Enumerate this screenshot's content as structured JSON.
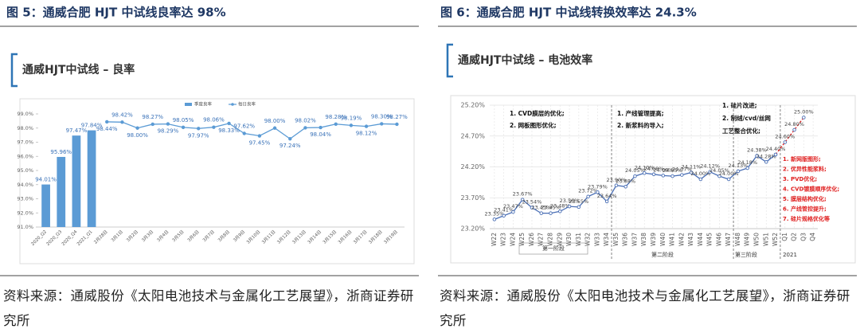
{
  "chart_data": [
    {
      "type": "bar",
      "title": "图 5：通威合肥 HJT 中试线良率达 98%",
      "subtitle": "通威HJT中试线 – 良率",
      "categories": [
        "2020_Q2",
        "2020_Q3",
        "2020_Q4",
        "2021_Q1",
        "2月28日",
        "3月1日",
        "3月2日",
        "3月3日",
        "3月4日",
        "3月5日",
        "3月6日",
        "3月7日",
        "3月8日",
        "3月9日",
        "3月10日",
        "3月11日",
        "3月12日",
        "3月13日",
        "3月14日",
        "3月15日",
        "3月16日",
        "3月17日",
        "3月18日",
        "3月19日"
      ],
      "series": [
        {
          "name": "季度良率",
          "type": "bar",
          "color": "#5b9bd5",
          "values": [
            94.01,
            95.96,
            97.47,
            97.84,
            null,
            null,
            null,
            null,
            null,
            null,
            null,
            null,
            null,
            null,
            null,
            null,
            null,
            null,
            null,
            null,
            null,
            null,
            null,
            null
          ],
          "value_labels": [
            "94.01%",
            "95.96%",
            "97.47%",
            "97.84%",
            null,
            null,
            null,
            null,
            null,
            null,
            null,
            null,
            null,
            null,
            null,
            null,
            null,
            null,
            null,
            null,
            null,
            null,
            null,
            null
          ]
        },
        {
          "name": "每日良率",
          "type": "line",
          "color": "#5b9bd5",
          "values": [
            null,
            null,
            null,
            null,
            98.44,
            98.42,
            98.0,
            98.27,
            98.29,
            98.05,
            97.97,
            98.06,
            98.33,
            97.62,
            97.45,
            98.0,
            97.24,
            98.02,
            98.04,
            98.28,
            98.19,
            98.12,
            98.3,
            98.27
          ],
          "value_labels": [
            null,
            null,
            null,
            null,
            "98.44%",
            "98.42%",
            "98.00%",
            "98.27%",
            "98.29%",
            "98.05%",
            "97.97%",
            "98.06%",
            "98.33%",
            "97.62%",
            "97.45%",
            "98.00%",
            "97.24%",
            "98.02%",
            "98.04%",
            "98.28%",
            "98.19%",
            "98.12%",
            "98.30%",
            "98.27%"
          ]
        }
      ],
      "ylim": [
        91,
        99
      ],
      "yticks": [
        {
          "value": 91,
          "label": "91.0%"
        },
        {
          "value": 92,
          "label": "92.0%"
        },
        {
          "value": 93,
          "label": "93.0%"
        },
        {
          "value": 94,
          "label": "94.0%"
        },
        {
          "value": 95,
          "label": "95.0%"
        },
        {
          "value": 96,
          "label": "96.0%"
        },
        {
          "value": 97,
          "label": "97.0%"
        },
        {
          "value": 98,
          "label": "98.0%"
        },
        {
          "value": 99,
          "label": "99.0%"
        }
      ],
      "grid": false,
      "legend": "top",
      "source": "资料来源：通威股份《太阳电池技术与金属化工艺展望》，浙商证券研究所"
    },
    {
      "type": "line",
      "title": "图 6：通威合肥 HJT 中试线转换效率达 24.3%",
      "subtitle": "通威HJT中试线 – 电池效率",
      "categories": [
        "W22",
        "W23",
        "W24",
        "W25",
        "W26",
        "W27",
        "W28",
        "W29",
        "W30",
        "W31",
        "W32",
        "W33",
        "W34",
        "W35",
        "W36",
        "W37",
        "W38",
        "W39",
        "W40",
        "W41",
        "W42",
        "W43",
        "W44",
        "W45",
        "W46",
        "W47",
        "W48",
        "W49",
        "W50",
        "W51",
        "W52",
        "Q1",
        "Q2",
        "Q3",
        "Q4"
      ],
      "series": [
        {
          "color": "#4a6fb5",
          "values": [
            23.35,
            23.41,
            23.47,
            23.67,
            23.54,
            23.45,
            23.45,
            23.48,
            23.56,
            23.55,
            23.72,
            23.79,
            23.64,
            23.9,
            23.88,
            24.05,
            24.1,
            24.08,
            24.06,
            24.05,
            24.07,
            24.11,
            24.0,
            24.12,
            24.05,
            24.0,
            24.13,
            24.18,
            24.38,
            24.28,
            24.4,
            null,
            null,
            null,
            null
          ],
          "value_labels": [
            "23.35%",
            "23.41%",
            "23.47%",
            "23.67%",
            "23.54%",
            "23.45%",
            "23.45%",
            "23.48%",
            "23.56%",
            "23.55%",
            "23.72%",
            "23.79%",
            "23.64%",
            "23.90%",
            "23.88%",
            "24.05%",
            "24.10%",
            "24.08%",
            "24.06%",
            "24.05%",
            "24.07%",
            "24.11%",
            "24.00%",
            "24.12%",
            "24.05%",
            "24.00%",
            "24.13%",
            "24.18%",
            "24.38%",
            "24.28%",
            "24.40%",
            null,
            null,
            null,
            null
          ]
        },
        {
          "color": "#e02020",
          "dashed": true,
          "values": [
            null,
            null,
            null,
            null,
            null,
            null,
            null,
            null,
            null,
            null,
            null,
            null,
            null,
            null,
            null,
            null,
            null,
            null,
            null,
            null,
            null,
            null,
            null,
            null,
            null,
            null,
            null,
            null,
            null,
            null,
            24.4,
            24.6,
            24.8,
            25.0,
            null
          ],
          "value_labels": [
            null,
            null,
            null,
            null,
            null,
            null,
            null,
            null,
            null,
            null,
            null,
            null,
            null,
            null,
            null,
            null,
            null,
            null,
            null,
            null,
            null,
            null,
            null,
            null,
            null,
            null,
            null,
            null,
            null,
            null,
            null,
            "24.60%",
            "24.80%",
            "25.00%",
            null
          ]
        }
      ],
      "ylim": [
        23.2,
        25.2
      ],
      "yticks": [
        {
          "value": 23.2,
          "label": "23.20%"
        },
        {
          "value": 23.7,
          "label": "23.70%"
        },
        {
          "value": 24.2,
          "label": "24.20%"
        },
        {
          "value": 24.7,
          "label": "24.70%"
        },
        {
          "value": 25.2,
          "label": "25.20%"
        }
      ],
      "grid": true,
      "annotations": [
        {
          "lines": [
            "1.  CVD膜层的优化;",
            "2.  网板图形优化;"
          ]
        },
        {
          "lines": [
            "1.  产线管理提高;",
            "2.  新浆料的导入;"
          ]
        },
        {
          "lines": [
            "1.  硅片改进;",
            "2.  制绒/cvd/丝网",
            "工艺整合优化;"
          ]
        },
        {
          "lines": [
            "1.  新网版图形;",
            "2.  优异性能浆料;",
            "3.  PVD优化;",
            "4.  CVD镀膜顺序优化;",
            "5.  膜层结构优化;",
            "6.  产线管控提升;",
            "7.  硅片规格优化等"
          ]
        }
      ],
      "phases": [
        "第一阶段",
        "第二阶段",
        "第三阶段",
        "2021"
      ],
      "source": "资料来源：通威股份《太阳电池技术与金属化工艺展望》，浙商证券研究所"
    }
  ]
}
